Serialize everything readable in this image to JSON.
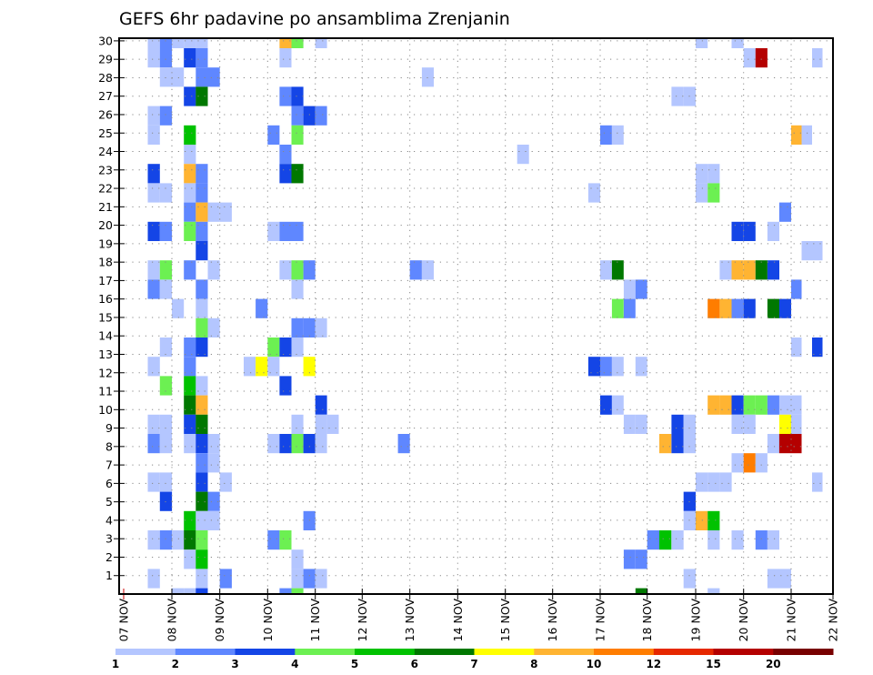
{
  "chart_data": {
    "type": "heatmap",
    "title": "GEFS 6hr padavine po ansamblima Zrenjanin",
    "xlabel": "",
    "ylabel": "",
    "x_tick_labels": [
      "07 NOV",
      "08 NOV",
      "09 NOV",
      "10 NOV",
      "11 NOV",
      "12 NOV",
      "13 NOV",
      "14 NOV",
      "15 NOV",
      "16 NOV",
      "17 NOV",
      "18 NOV",
      "19 NOV",
      "20 NOV",
      "21 NOV",
      "22 NOV"
    ],
    "steps_per_day": 4,
    "n_steps": 60,
    "y_tick_labels": [
      "1",
      "2",
      "3",
      "4",
      "5",
      "6",
      "7",
      "8",
      "9",
      "10",
      "11",
      "12",
      "13",
      "14",
      "15",
      "16",
      "17",
      "18",
      "19",
      "20",
      "21",
      "22",
      "23",
      "24",
      "25",
      "26",
      "27",
      "28",
      "29",
      "30"
    ],
    "ylim": [
      0,
      30
    ],
    "grid": true,
    "n_rows": 30,
    "row_order": "top-to-bottom",
    "colorbar": {
      "labels": [
        "1",
        "2",
        "3",
        "4",
        "5",
        "6",
        "7",
        "8",
        "10",
        "12",
        "15",
        "20"
      ],
      "colors": [
        "#b4c6ff",
        "#5f87ff",
        "#1445e6",
        "#6cf052",
        "#00c200",
        "#007800",
        "#ffff00",
        "#ffb432",
        "#ff7d00",
        "#e62800",
        "#b40000",
        "#780000"
      ]
    },
    "cells_note": "rows[j] lists [step index, color level 1-12] pairs; level n uses colorbar.colors[n-1]",
    "rows": [
      [
        [
          2,
          1
        ],
        [
          3,
          2
        ],
        [
          4,
          1
        ],
        [
          5,
          1
        ],
        [
          6,
          1
        ],
        [
          13,
          8
        ],
        [
          14,
          4
        ],
        [
          16,
          1
        ],
        [
          48,
          1
        ],
        [
          51,
          1
        ]
      ],
      [
        [
          2,
          1
        ],
        [
          3,
          2
        ],
        [
          5,
          3
        ],
        [
          6,
          2
        ],
        [
          13,
          1
        ],
        [
          52,
          1
        ],
        [
          53,
          11
        ],
        [
          58,
          1
        ]
      ],
      [
        [
          3,
          1
        ],
        [
          4,
          1
        ],
        [
          6,
          2
        ],
        [
          7,
          2
        ],
        [
          25,
          1
        ]
      ],
      [
        [
          5,
          3
        ],
        [
          6,
          6
        ],
        [
          13,
          2
        ],
        [
          14,
          3
        ],
        [
          46,
          1
        ],
        [
          47,
          1
        ]
      ],
      [
        [
          2,
          1
        ],
        [
          3,
          2
        ],
        [
          14,
          2
        ],
        [
          15,
          3
        ],
        [
          16,
          2
        ]
      ],
      [
        [
          2,
          1
        ],
        [
          5,
          5
        ],
        [
          12,
          2
        ],
        [
          14,
          4
        ],
        [
          40,
          2
        ],
        [
          41,
          1
        ],
        [
          56,
          8
        ],
        [
          57,
          1
        ]
      ],
      [
        [
          5,
          1
        ],
        [
          13,
          2
        ],
        [
          33,
          1
        ]
      ],
      [
        [
          2,
          3
        ],
        [
          5,
          8
        ],
        [
          6,
          2
        ],
        [
          13,
          3
        ],
        [
          14,
          6
        ],
        [
          48,
          1
        ],
        [
          49,
          1
        ]
      ],
      [
        [
          2,
          1
        ],
        [
          3,
          1
        ],
        [
          5,
          1
        ],
        [
          6,
          2
        ],
        [
          39,
          1
        ],
        [
          48,
          1
        ],
        [
          49,
          4
        ]
      ],
      [
        [
          5,
          2
        ],
        [
          6,
          8
        ],
        [
          7,
          1
        ],
        [
          8,
          1
        ],
        [
          55,
          2
        ]
      ],
      [
        [
          2,
          3
        ],
        [
          3,
          2
        ],
        [
          5,
          4
        ],
        [
          6,
          2
        ],
        [
          12,
          1
        ],
        [
          13,
          2
        ],
        [
          14,
          2
        ],
        [
          51,
          3
        ],
        [
          52,
          3
        ],
        [
          54,
          1
        ],
        [
          59,
          2
        ]
      ],
      [
        [
          6,
          3
        ],
        [
          57,
          1
        ],
        [
          58,
          1
        ]
      ],
      [
        [
          2,
          1
        ],
        [
          3,
          4
        ],
        [
          5,
          2
        ],
        [
          7,
          1
        ],
        [
          13,
          1
        ],
        [
          14,
          4
        ],
        [
          15,
          2
        ],
        [
          24,
          2
        ],
        [
          25,
          1
        ],
        [
          40,
          1
        ],
        [
          41,
          6
        ],
        [
          50,
          1
        ],
        [
          51,
          8
        ],
        [
          52,
          8
        ],
        [
          53,
          6
        ],
        [
          54,
          3
        ]
      ],
      [
        [
          2,
          2
        ],
        [
          3,
          1
        ],
        [
          6,
          2
        ],
        [
          14,
          1
        ],
        [
          42,
          1
        ],
        [
          43,
          2
        ],
        [
          56,
          2
        ]
      ],
      [
        [
          4,
          1
        ],
        [
          6,
          1
        ],
        [
          11,
          2
        ],
        [
          41,
          4
        ],
        [
          42,
          2
        ],
        [
          49,
          9
        ],
        [
          50,
          8
        ],
        [
          51,
          2
        ],
        [
          52,
          3
        ],
        [
          54,
          6
        ],
        [
          55,
          3
        ]
      ],
      [
        [
          6,
          4
        ],
        [
          7,
          1
        ],
        [
          14,
          2
        ],
        [
          15,
          2
        ],
        [
          16,
          1
        ]
      ],
      [
        [
          3,
          1
        ],
        [
          5,
          2
        ],
        [
          6,
          3
        ],
        [
          12,
          4
        ],
        [
          13,
          3
        ],
        [
          14,
          1
        ],
        [
          56,
          1
        ],
        [
          58,
          3
        ],
        [
          59,
          4
        ]
      ],
      [
        [
          2,
          1
        ],
        [
          5,
          2
        ],
        [
          10,
          1
        ],
        [
          11,
          7
        ],
        [
          12,
          1
        ],
        [
          15,
          7
        ],
        [
          39,
          3
        ],
        [
          40,
          2
        ],
        [
          41,
          1
        ],
        [
          43,
          1
        ]
      ],
      [
        [
          3,
          4
        ],
        [
          5,
          5
        ],
        [
          6,
          1
        ],
        [
          13,
          3
        ]
      ],
      [
        [
          5,
          6
        ],
        [
          6,
          8
        ],
        [
          16,
          3
        ],
        [
          40,
          3
        ],
        [
          41,
          1
        ],
        [
          49,
          8
        ],
        [
          50,
          8
        ],
        [
          51,
          3
        ],
        [
          52,
          4
        ],
        [
          53,
          4
        ],
        [
          54,
          2
        ],
        [
          55,
          1
        ],
        [
          56,
          1
        ]
      ],
      [
        [
          2,
          1
        ],
        [
          3,
          1
        ],
        [
          5,
          3
        ],
        [
          6,
          6
        ],
        [
          14,
          1
        ],
        [
          16,
          1
        ],
        [
          17,
          1
        ],
        [
          42,
          1
        ],
        [
          43,
          1
        ],
        [
          46,
          3
        ],
        [
          47,
          1
        ],
        [
          51,
          1
        ],
        [
          52,
          1
        ],
        [
          55,
          7
        ],
        [
          56,
          1
        ]
      ],
      [
        [
          2,
          2
        ],
        [
          3,
          1
        ],
        [
          5,
          1
        ],
        [
          6,
          3
        ],
        [
          7,
          1
        ],
        [
          12,
          1
        ],
        [
          13,
          3
        ],
        [
          14,
          4
        ],
        [
          15,
          3
        ],
        [
          16,
          1
        ],
        [
          23,
          2
        ],
        [
          45,
          8
        ],
        [
          46,
          3
        ],
        [
          47,
          1
        ],
        [
          54,
          1
        ],
        [
          55,
          11
        ],
        [
          56,
          11
        ]
      ],
      [
        [
          6,
          2
        ],
        [
          7,
          1
        ],
        [
          51,
          1
        ],
        [
          52,
          9
        ],
        [
          53,
          1
        ]
      ],
      [
        [
          2,
          1
        ],
        [
          3,
          1
        ],
        [
          6,
          3
        ],
        [
          8,
          1
        ],
        [
          48,
          1
        ],
        [
          49,
          1
        ],
        [
          50,
          1
        ],
        [
          58,
          1
        ]
      ],
      [
        [
          3,
          3
        ],
        [
          6,
          6
        ],
        [
          7,
          2
        ],
        [
          47,
          3
        ]
      ],
      [
        [
          5,
          5
        ],
        [
          6,
          1
        ],
        [
          7,
          1
        ],
        [
          15,
          2
        ],
        [
          47,
          1
        ],
        [
          48,
          8
        ],
        [
          49,
          5
        ]
      ],
      [
        [
          2,
          1
        ],
        [
          3,
          2
        ],
        [
          4,
          1
        ],
        [
          5,
          6
        ],
        [
          6,
          4
        ],
        [
          12,
          2
        ],
        [
          13,
          4
        ],
        [
          44,
          2
        ],
        [
          45,
          5
        ],
        [
          46,
          1
        ],
        [
          49,
          1
        ],
        [
          51,
          1
        ],
        [
          53,
          2
        ],
        [
          54,
          1
        ]
      ],
      [
        [
          5,
          1
        ],
        [
          6,
          5
        ],
        [
          14,
          1
        ],
        [
          42,
          2
        ],
        [
          43,
          2
        ],
        [
          59,
          1
        ]
      ],
      [
        [
          2,
          1
        ],
        [
          6,
          1
        ],
        [
          8,
          2
        ],
        [
          14,
          1
        ],
        [
          15,
          2
        ],
        [
          16,
          1
        ],
        [
          47,
          1
        ],
        [
          54,
          1
        ],
        [
          55,
          1
        ]
      ],
      [
        [
          4,
          1
        ],
        [
          5,
          1
        ],
        [
          6,
          3
        ],
        [
          13,
          2
        ],
        [
          14,
          4
        ],
        [
          43,
          6
        ],
        [
          49,
          1
        ]
      ]
    ]
  }
}
